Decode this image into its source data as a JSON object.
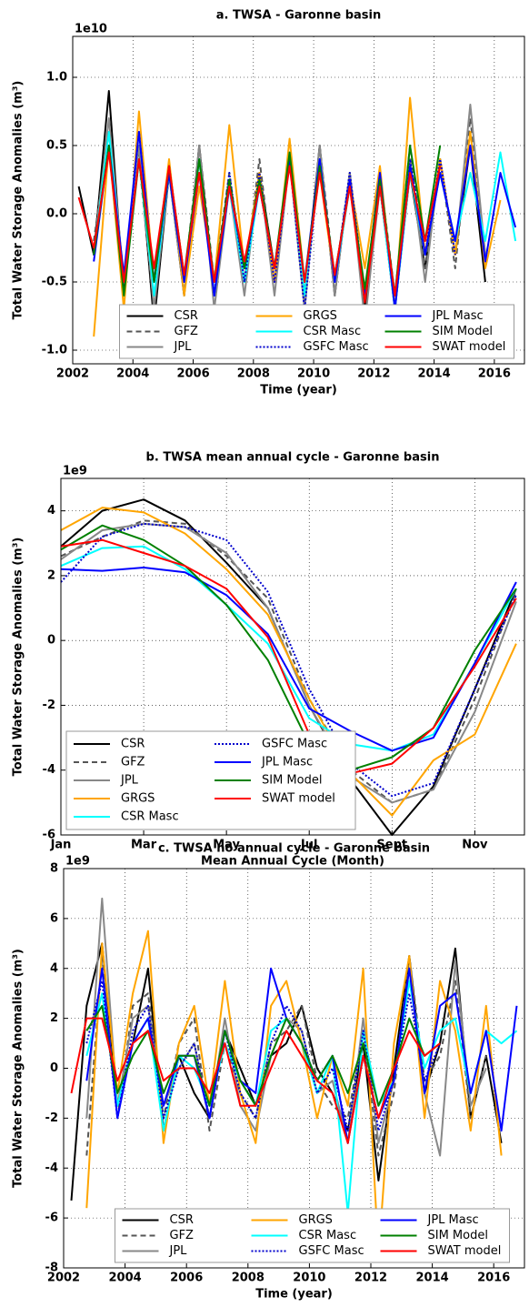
{
  "chart_data": [
    {
      "type": "line",
      "title": "a. TWSA - Garonne basin",
      "offset_label": "1e10",
      "x_label": "Time (year)",
      "y_label": "Total Water Storage Anomalies (m³)",
      "xlim": [
        2002,
        2017
      ],
      "xticks": [
        2002,
        2004,
        2006,
        2008,
        2010,
        2012,
        2014,
        2016
      ],
      "ylim": [
        -1.1,
        1.3
      ],
      "yticks": [
        {
          "value": -1.0,
          "label": "-1.0"
        },
        -0.5,
        {
          "value": 0.0,
          "label": "0.0"
        },
        0.5,
        {
          "value": 1.0,
          "label": "1.0"
        }
      ],
      "grid": true,
      "legend": "lower center",
      "legend_ncol": 3,
      "x": [
        2002.2,
        2002.7,
        2003.2,
        2003.7,
        2004.2,
        2004.7,
        2005.2,
        2005.7,
        2006.2,
        2006.7,
        2007.2,
        2007.7,
        2008.2,
        2008.7,
        2009.2,
        2009.7,
        2010.2,
        2010.7,
        2011.2,
        2011.7,
        2012.2,
        2012.7,
        2013.2,
        2013.7,
        2014.2,
        2014.7,
        2015.2,
        2015.7,
        2016.2,
        2016.7
      ],
      "series": [
        {
          "name": "CSR",
          "color": "#000000",
          "style": "solid",
          "values": [
            0.2,
            -0.3,
            0.9,
            -0.6,
            0.5,
            -0.8,
            0.3,
            -0.6,
            0.5,
            -0.6,
            0.2,
            -0.5,
            0.3,
            -0.4,
            0.4,
            -0.6,
            0.5,
            -0.6,
            0.3,
            -0.7,
            0.2,
            -0.7,
            0.3,
            -0.4,
            0.4,
            -0.3,
            0.5,
            -0.5,
            null,
            null
          ]
        },
        {
          "name": "GFZ",
          "color": "#555555",
          "style": "dashed",
          "values": [
            null,
            -0.2,
            0.6,
            -0.5,
            0.4,
            -0.7,
            0.3,
            -0.5,
            0.5,
            -0.5,
            0.3,
            -0.5,
            0.4,
            -0.5,
            0.4,
            -0.7,
            0.5,
            -0.5,
            0.3,
            -0.6,
            0.3,
            -0.6,
            0.5,
            -0.4,
            0.4,
            -0.4,
            0.7,
            -0.3,
            null,
            null
          ]
        },
        {
          "name": "JPL",
          "color": "#888888",
          "style": "solid",
          "values": [
            null,
            -0.3,
            0.7,
            -0.5,
            0.5,
            -0.7,
            0.3,
            -0.6,
            0.5,
            -0.7,
            0.2,
            -0.6,
            0.3,
            -0.6,
            0.4,
            -0.7,
            0.5,
            -0.6,
            0.3,
            -0.8,
            0.2,
            -0.7,
            0.4,
            -0.5,
            0.4,
            -0.3,
            0.8,
            -0.3,
            null,
            null
          ]
        },
        {
          "name": "GRGS",
          "color": "#ffa500",
          "style": "solid",
          "values": [
            null,
            -0.9,
            0.5,
            -0.7,
            0.75,
            -0.5,
            0.4,
            -0.6,
            0.2,
            -0.5,
            0.65,
            -0.4,
            0.3,
            -0.5,
            0.55,
            -0.5,
            0.3,
            -0.5,
            0.25,
            -0.4,
            0.35,
            -0.7,
            0.85,
            -0.3,
            0.4,
            -0.3,
            0.6,
            -0.4,
            0.1,
            null
          ]
        },
        {
          "name": "CSR Masc",
          "color": "#00ffff",
          "style": "solid",
          "values": [
            null,
            -0.3,
            0.6,
            -0.5,
            0.4,
            -0.6,
            0.3,
            -0.5,
            0.4,
            -0.6,
            0.2,
            -0.5,
            0.2,
            -0.4,
            0.4,
            -0.6,
            0.4,
            -0.5,
            0.2,
            -0.6,
            0.2,
            -0.7,
            0.3,
            -0.3,
            0.3,
            -0.2,
            0.3,
            -0.2,
            0.45,
            -0.2
          ]
        },
        {
          "name": "GSFC Masc",
          "color": "#0000cd",
          "style": "dotted",
          "values": [
            null,
            -0.3,
            0.5,
            -0.5,
            0.6,
            -0.5,
            0.3,
            -0.5,
            0.4,
            -0.6,
            0.3,
            -0.5,
            0.3,
            -0.5,
            0.4,
            -0.7,
            0.4,
            -0.5,
            0.3,
            -0.6,
            0.2,
            -0.6,
            0.4,
            -0.3,
            0.4,
            -0.3,
            null,
            null,
            null,
            null
          ]
        },
        {
          "name": "JPL Masc",
          "color": "#0000ff",
          "style": "solid",
          "values": [
            null,
            -0.35,
            0.5,
            -0.45,
            0.6,
            -0.5,
            0.3,
            -0.5,
            0.3,
            -0.6,
            0.2,
            -0.4,
            0.2,
            -0.4,
            0.4,
            -0.5,
            0.4,
            -0.5,
            0.25,
            -0.6,
            0.3,
            -0.7,
            0.35,
            -0.3,
            0.3,
            -0.2,
            0.5,
            -0.35,
            0.3,
            -0.1
          ]
        },
        {
          "name": "SIM Model",
          "color": "#008000",
          "style": "solid",
          "values": [
            null,
            -0.3,
            0.5,
            -0.6,
            0.4,
            -0.5,
            0.35,
            -0.45,
            0.4,
            -0.5,
            0.25,
            -0.4,
            0.25,
            -0.4,
            0.45,
            -0.5,
            0.35,
            -0.45,
            0.2,
            -0.55,
            0.25,
            -0.6,
            0.5,
            -0.2,
            0.5,
            null,
            null,
            null,
            null,
            null
          ]
        },
        {
          "name": "SWAT model",
          "color": "#ff0000",
          "style": "solid",
          "values": [
            0.12,
            -0.25,
            0.45,
            -0.5,
            0.4,
            -0.4,
            0.35,
            -0.45,
            0.3,
            -0.5,
            0.2,
            -0.35,
            0.2,
            -0.4,
            0.35,
            -0.5,
            0.3,
            -0.45,
            0.2,
            -0.65,
            0.2,
            -0.6,
            0.3,
            -0.2,
            0.35,
            null,
            null,
            null,
            null,
            null
          ]
        }
      ]
    },
    {
      "type": "line",
      "title": "b. TWSA mean annual cycle - Garonne basin",
      "offset_label": "1e9",
      "x_label": "Mean Annual Cycle (Month)",
      "y_label": "Total Water Storage Anomalies (m³)",
      "categories": [
        "Jan",
        null,
        "Mar",
        null,
        "May",
        null,
        "Jul",
        null,
        "Sept",
        null,
        "Nov",
        null
      ],
      "ylim": [
        -6,
        5
      ],
      "yticks": [
        -6,
        -4,
        -2,
        0,
        2,
        4
      ],
      "grid": true,
      "legend": "lower left",
      "legend_ncol": 2,
      "series": [
        {
          "name": "CSR",
          "color": "#000000",
          "style": "solid",
          "values": [
            2.9,
            4.0,
            4.35,
            3.7,
            2.4,
            1.0,
            -2.0,
            -4.3,
            -6.0,
            -4.5,
            -1.5,
            1.6
          ]
        },
        {
          "name": "GFZ",
          "color": "#555555",
          "style": "dashed",
          "values": [
            2.6,
            3.2,
            3.7,
            3.6,
            2.6,
            1.3,
            -1.8,
            -4.0,
            -5.0,
            -4.6,
            -1.8,
            1.5
          ]
        },
        {
          "name": "JPL",
          "color": "#888888",
          "style": "solid",
          "values": [
            2.5,
            3.4,
            3.6,
            3.5,
            2.7,
            1.0,
            -2.0,
            -4.2,
            -5.0,
            -4.6,
            -2.2,
            1.2
          ]
        },
        {
          "name": "GRGS",
          "color": "#ffa500",
          "style": "solid",
          "values": [
            3.4,
            4.1,
            3.95,
            3.3,
            2.2,
            0.8,
            -1.8,
            -4.1,
            -5.4,
            -3.7,
            -2.9,
            -0.1
          ]
        },
        {
          "name": "CSR Masc",
          "color": "#00ffff",
          "style": "solid",
          "values": [
            2.3,
            2.85,
            2.9,
            2.2,
            1.1,
            -0.1,
            -2.4,
            -3.2,
            -3.4,
            -2.9,
            -0.7,
            1.6
          ]
        },
        {
          "name": "GSFC Masc",
          "color": "#0000cd",
          "style": "dotted",
          "values": [
            1.8,
            3.2,
            3.6,
            3.5,
            3.1,
            1.5,
            -1.5,
            -3.8,
            -4.8,
            -4.4,
            -1.5,
            1.4
          ]
        },
        {
          "name": "JPL Masc",
          "color": "#0000ff",
          "style": "solid",
          "values": [
            2.2,
            2.15,
            2.25,
            2.1,
            1.4,
            0.2,
            -2.1,
            -2.8,
            -3.4,
            -3.0,
            -0.7,
            1.8
          ]
        },
        {
          "name": "SIM Model",
          "color": "#008000",
          "style": "solid",
          "values": [
            2.8,
            3.55,
            3.1,
            2.3,
            1.1,
            -0.6,
            -3.2,
            -4.0,
            -3.6,
            -2.7,
            -0.3,
            1.6
          ]
        },
        {
          "name": "SWAT model",
          "color": "#ff0000",
          "style": "solid",
          "values": [
            2.9,
            3.1,
            2.7,
            2.3,
            1.6,
            0.1,
            -2.9,
            -4.1,
            -3.8,
            -2.7,
            -0.8,
            1.3
          ]
        }
      ]
    },
    {
      "type": "line",
      "title": "c. TWSA no annual cycle - Garonne basin",
      "offset_label": "1e9",
      "x_label": "Time (year)",
      "y_label": "Total Water Storage Anomalies (m³)",
      "xlim": [
        2002,
        2017
      ],
      "xticks": [
        2002,
        2004,
        2006,
        2008,
        2010,
        2012,
        2014,
        2016
      ],
      "ylim": [
        -8,
        8
      ],
      "yticks": [
        -8,
        -6,
        -4,
        -2,
        0,
        2,
        4,
        6,
        8
      ],
      "grid": true,
      "legend": "lower center",
      "legend_ncol": 3,
      "x": [
        2002.25,
        2002.75,
        2003.25,
        2003.75,
        2004.25,
        2004.75,
        2005.25,
        2005.75,
        2006.25,
        2006.75,
        2007.25,
        2007.75,
        2008.25,
        2008.75,
        2009.25,
        2009.75,
        2010.25,
        2010.75,
        2011.25,
        2011.75,
        2012.25,
        2012.75,
        2013.25,
        2013.75,
        2014.25,
        2014.75,
        2015.25,
        2015.75,
        2016.25,
        2016.75
      ],
      "series": [
        {
          "name": "CSR",
          "color": "#000000",
          "style": "solid",
          "values": [
            -5.3,
            2.5,
            5.0,
            -1.5,
            1.0,
            4.0,
            -2.5,
            0.5,
            -1.0,
            -2.0,
            1.5,
            0.0,
            -1.5,
            0.5,
            1.0,
            2.5,
            0.0,
            -1.0,
            -2.5,
            1.0,
            -4.5,
            0.0,
            4.5,
            -1.0,
            1.0,
            4.8,
            -2.0,
            0.5,
            -3.0,
            null
          ]
        },
        {
          "name": "GFZ",
          "color": "#555555",
          "style": "dashed",
          "values": [
            null,
            -3.5,
            4.5,
            -2.0,
            2.5,
            3.0,
            -2.0,
            1.0,
            2.0,
            -2.5,
            1.0,
            -1.0,
            -2.0,
            1.0,
            1.5,
            2.5,
            -0.5,
            -1.5,
            -2.0,
            1.5,
            -3.5,
            -1.0,
            4.5,
            -0.5,
            0.5,
            3.5,
            -2.0,
            0.5,
            null,
            null
          ]
        },
        {
          "name": "JPL",
          "color": "#888888",
          "style": "solid",
          "values": [
            null,
            -2.0,
            6.8,
            -1.5,
            2.0,
            2.5,
            -1.5,
            0.0,
            1.0,
            -2.0,
            2.0,
            -1.5,
            -2.5,
            0.5,
            2.0,
            1.5,
            -1.0,
            -0.5,
            -3.0,
            2.0,
            -3.0,
            -0.5,
            4.0,
            -1.0,
            -3.5,
            4.3,
            -1.5,
            0.0,
            null,
            null
          ]
        },
        {
          "name": "GRGS",
          "color": "#ffa500",
          "style": "solid",
          "values": [
            null,
            -5.6,
            5.0,
            -1.0,
            3.0,
            5.5,
            -3.0,
            1.0,
            2.5,
            -1.5,
            3.5,
            -1.0,
            -3.0,
            2.5,
            3.5,
            1.0,
            -2.0,
            0.5,
            -1.5,
            4.0,
            -7.5,
            1.0,
            4.5,
            -2.0,
            3.5,
            1.5,
            -2.5,
            2.5,
            -3.5,
            null
          ]
        },
        {
          "name": "CSR Masc",
          "color": "#00ffff",
          "style": "solid",
          "values": [
            null,
            0.5,
            3.0,
            -1.5,
            1.0,
            2.0,
            -2.5,
            0.5,
            0.0,
            -1.5,
            1.0,
            -0.5,
            -1.5,
            1.5,
            2.0,
            1.0,
            -1.0,
            0.5,
            -5.8,
            1.5,
            -1.5,
            -0.5,
            3.5,
            0.0,
            1.5,
            2.0,
            -1.0,
            1.5,
            1.0,
            1.5
          ]
        },
        {
          "name": "GSFC Masc",
          "color": "#0000cd",
          "style": "dotted",
          "values": [
            null,
            1.0,
            3.5,
            -2.0,
            1.5,
            2.5,
            -2.0,
            0.0,
            1.0,
            -2.0,
            1.5,
            -1.0,
            -2.0,
            1.0,
            2.5,
            1.5,
            -1.0,
            0.0,
            -2.5,
            1.5,
            -2.5,
            -0.5,
            3.0,
            -0.5,
            1.0,
            null,
            null,
            null,
            null,
            null
          ]
        },
        {
          "name": "JPL Masc",
          "color": "#0000ff",
          "style": "solid",
          "values": [
            null,
            -0.5,
            4.0,
            -2.0,
            1.0,
            2.0,
            -1.5,
            0.5,
            0.5,
            -2.0,
            1.5,
            -0.5,
            -1.0,
            4.0,
            2.0,
            1.0,
            -0.5,
            0.5,
            -3.0,
            0.5,
            -2.0,
            -0.5,
            4.0,
            -1.0,
            2.5,
            3.0,
            -1.0,
            1.5,
            -2.5,
            2.5
          ]
        },
        {
          "name": "SIM Model",
          "color": "#008000",
          "style": "solid",
          "values": [
            null,
            1.5,
            2.5,
            -1.0,
            0.5,
            1.5,
            -1.0,
            0.5,
            0.5,
            -1.5,
            1.5,
            -0.5,
            -1.5,
            0.5,
            2.0,
            1.0,
            -0.5,
            0.5,
            -1.0,
            1.0,
            -1.5,
            0.0,
            2.0,
            0.5,
            1.0,
            null,
            null,
            null,
            null,
            null
          ]
        },
        {
          "name": "SWAT model",
          "color": "#ff0000",
          "style": "solid",
          "values": [
            -1.0,
            2.0,
            2.0,
            -0.5,
            1.0,
            1.5,
            -0.5,
            0.0,
            0.0,
            -1.0,
            1.0,
            -1.5,
            -1.5,
            0.0,
            1.5,
            0.5,
            -0.5,
            -1.0,
            -3.0,
            0.5,
            -2.0,
            0.0,
            1.5,
            0.5,
            1.0,
            null,
            null,
            null,
            null,
            null
          ]
        }
      ]
    }
  ]
}
